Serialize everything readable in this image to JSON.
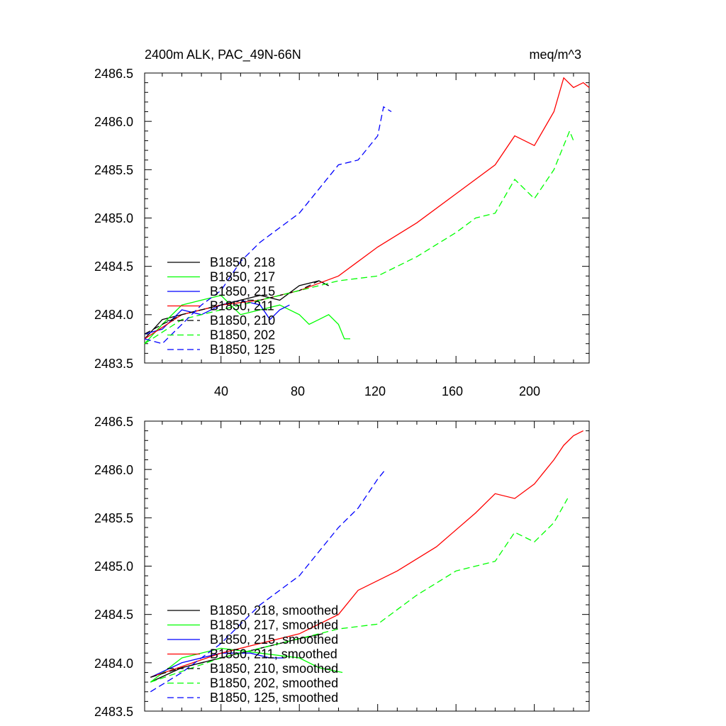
{
  "chart_data": [
    {
      "type": "line",
      "title_left": "2400m ALK, PAC_49N-66N",
      "title_right": "meq/m^3",
      "ylim": [
        2483.5,
        2486.5
      ],
      "xlim": [
        1,
        228
      ],
      "yticks": [
        "2486.5",
        "2486.0",
        "2485.5",
        "2485.0",
        "2484.5",
        "2484.0",
        "2483.5"
      ],
      "xticks": [
        "40",
        "80",
        "120",
        "160",
        "200"
      ],
      "legend_position": "left",
      "series": [
        {
          "name": "B1850, 218",
          "color": "#000000",
          "dash": false,
          "x": [
            1,
            10,
            20,
            30,
            40,
            50,
            60,
            70,
            80,
            90,
            95
          ],
          "y": [
            2483.75,
            2483.95,
            2484.0,
            2484.05,
            2484.1,
            2484.15,
            2484.2,
            2484.15,
            2484.3,
            2484.35,
            2484.3
          ]
        },
        {
          "name": "B1850, 217",
          "color": "#00ff00",
          "dash": false,
          "x": [
            1,
            10,
            20,
            30,
            40,
            50,
            60,
            70,
            80,
            85,
            90,
            95,
            100,
            103,
            106
          ],
          "y": [
            2483.7,
            2483.9,
            2484.1,
            2484.15,
            2484.2,
            2484.0,
            2484.05,
            2484.1,
            2484.0,
            2483.9,
            2483.95,
            2484.0,
            2483.9,
            2483.75,
            2483.75
          ]
        },
        {
          "name": "B1850, 215",
          "color": "#0000ff",
          "dash": false,
          "x": [
            1,
            10,
            20,
            30,
            40,
            50,
            60,
            65,
            70,
            75
          ],
          "y": [
            2483.8,
            2483.85,
            2484.05,
            2484.0,
            2484.1,
            2484.15,
            2484.1,
            2483.95,
            2484.05,
            2484.1
          ]
        },
        {
          "name": "B1850, 211",
          "color": "#ff0000",
          "dash": false,
          "x": [
            1,
            20,
            40,
            60,
            80,
            100,
            110,
            120,
            140,
            160,
            180,
            190,
            200,
            210,
            215,
            220,
            225,
            228
          ],
          "y": [
            2483.75,
            2484.0,
            2484.1,
            2484.15,
            2484.25,
            2484.4,
            2484.55,
            2484.7,
            2484.95,
            2485.25,
            2485.55,
            2485.85,
            2485.75,
            2486.1,
            2486.45,
            2486.35,
            2486.4,
            2486.35
          ]
        },
        {
          "name": "B1850, 210",
          "color": "#000000",
          "dash": true,
          "x": [
            1,
            10,
            20,
            30,
            40,
            50,
            60,
            70,
            80,
            90,
            95
          ],
          "y": [
            2483.8,
            2483.9,
            2484.0,
            2484.05,
            2484.1,
            2484.15,
            2484.15,
            2484.2,
            2484.25,
            2484.35,
            2484.3
          ]
        },
        {
          "name": "B1850, 202",
          "color": "#00ff00",
          "dash": true,
          "x": [
            1,
            20,
            40,
            60,
            80,
            100,
            120,
            140,
            160,
            170,
            180,
            190,
            200,
            210,
            218,
            220
          ],
          "y": [
            2483.7,
            2483.95,
            2484.05,
            2484.15,
            2484.25,
            2484.35,
            2484.4,
            2484.6,
            2484.85,
            2485.0,
            2485.05,
            2485.4,
            2485.2,
            2485.5,
            2485.9,
            2485.8
          ]
        },
        {
          "name": "B1850, 125",
          "color": "#0000ff",
          "dash": true,
          "x": [
            1,
            10,
            20,
            30,
            40,
            50,
            60,
            70,
            80,
            90,
            100,
            110,
            120,
            123,
            127
          ],
          "y": [
            2483.75,
            2483.7,
            2483.9,
            2484.1,
            2484.25,
            2484.55,
            2484.75,
            2484.9,
            2485.05,
            2485.3,
            2485.55,
            2485.6,
            2485.85,
            2486.15,
            2486.1
          ]
        }
      ]
    },
    {
      "type": "line",
      "ylim": [
        2483.5,
        2486.5
      ],
      "xlim": [
        1,
        228
      ],
      "yticks": [
        "2486.5",
        "2486.0",
        "2485.5",
        "2485.0",
        "2484.5",
        "2484.0",
        "2483.5"
      ],
      "legend_position": "left",
      "series": [
        {
          "name": "B1850, 218, smoothed",
          "color": "#000000",
          "dash": false,
          "x": [
            4,
            20,
            40,
            60,
            80,
            92
          ],
          "y": [
            2483.8,
            2483.95,
            2484.05,
            2484.15,
            2484.25,
            2484.3
          ]
        },
        {
          "name": "B1850, 217, smoothed",
          "color": "#00ff00",
          "dash": false,
          "x": [
            4,
            20,
            40,
            60,
            80,
            90,
            102
          ],
          "y": [
            2483.8,
            2484.05,
            2484.15,
            2484.1,
            2484.05,
            2483.95,
            2483.9
          ]
        },
        {
          "name": "B1850, 215, smoothed",
          "color": "#0000ff",
          "dash": false,
          "x": [
            4,
            20,
            40,
            55,
            65,
            72
          ],
          "y": [
            2483.85,
            2484.0,
            2484.1,
            2484.1,
            2484.05,
            2484.05
          ]
        },
        {
          "name": "B1850, 211, smoothed",
          "color": "#ff0000",
          "dash": false,
          "x": [
            4,
            40,
            80,
            100,
            110,
            130,
            150,
            170,
            180,
            190,
            200,
            210,
            215,
            220,
            225
          ],
          "y": [
            2483.85,
            2484.1,
            2484.3,
            2484.5,
            2484.75,
            2484.95,
            2485.2,
            2485.55,
            2485.75,
            2485.7,
            2485.85,
            2486.1,
            2486.25,
            2486.35,
            2486.4
          ]
        },
        {
          "name": "B1850, 210, smoothed",
          "color": "#000000",
          "dash": true,
          "x": [
            4,
            20,
            40,
            60,
            80,
            92
          ],
          "y": [
            2483.85,
            2483.95,
            2484.05,
            2484.15,
            2484.25,
            2484.3
          ]
        },
        {
          "name": "B1850, 202, smoothed",
          "color": "#00ff00",
          "dash": true,
          "x": [
            4,
            40,
            80,
            100,
            120,
            140,
            160,
            170,
            180,
            190,
            200,
            210,
            217
          ],
          "y": [
            2483.8,
            2484.05,
            2484.25,
            2484.35,
            2484.4,
            2484.7,
            2484.95,
            2485.0,
            2485.05,
            2485.35,
            2485.25,
            2485.45,
            2485.7
          ]
        },
        {
          "name": "B1850, 125, smoothed",
          "color": "#0000ff",
          "dash": true,
          "x": [
            4,
            20,
            40,
            60,
            80,
            100,
            110,
            120,
            124
          ],
          "y": [
            2483.7,
            2483.9,
            2484.2,
            2484.6,
            2484.9,
            2485.4,
            2485.6,
            2485.9,
            2486.0
          ]
        }
      ]
    }
  ]
}
